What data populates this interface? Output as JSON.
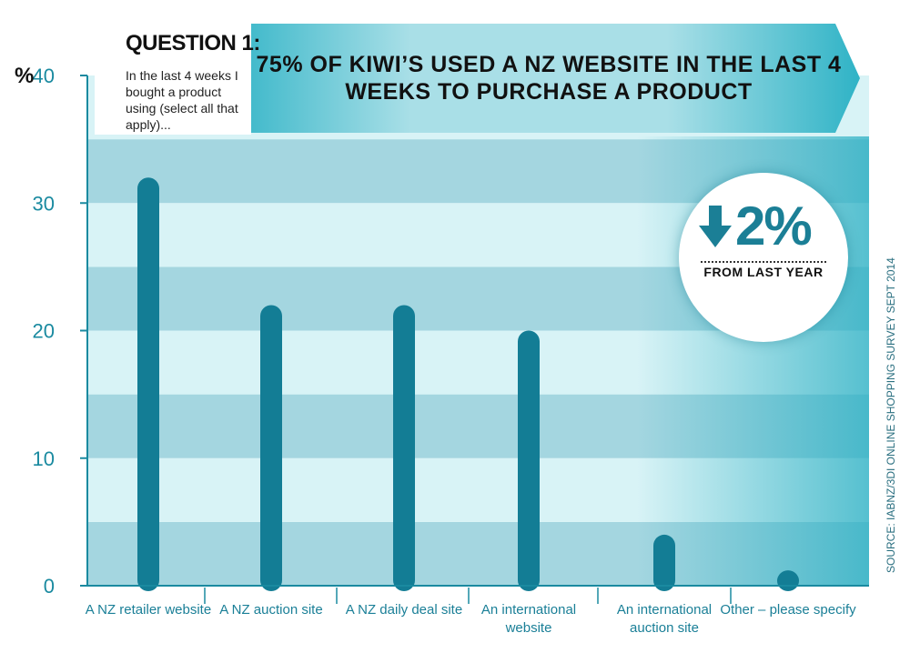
{
  "question": {
    "title": "QUESTION 1:",
    "text": "In the last 4 weeks I bought a product using (select all that apply)..."
  },
  "headline": "75% OF KIWI’S USED A NZ WEBSITE IN THE LAST 4 WEEKS TO PURCHASE A PRODUCT",
  "badge": {
    "value": "2%",
    "caption": "FROM LAST YEAR",
    "direction_icon": "down-arrow-icon"
  },
  "source": "SOURCE: IABNZ/3DI ONLINE SHOPPING SURVEY SEPT 2014",
  "colors": {
    "bar": "#137d95",
    "band_dark": "#a4d6e0",
    "band_light": "#d8f3f6",
    "accent_teal": "#2aafc3",
    "axis": "#1a8aa0"
  },
  "chart_data": {
    "type": "bar",
    "ylabel": "%",
    "ylim": [
      0,
      40
    ],
    "yticks": [
      "0",
      "10",
      "20",
      "30",
      "40"
    ],
    "categories": [
      [
        "A NZ retailer website"
      ],
      [
        "A NZ auction site"
      ],
      [
        "A NZ daily deal site"
      ],
      [
        "An international",
        "website"
      ],
      [
        "An international",
        "auction site"
      ],
      [
        "Other – please specify"
      ]
    ],
    "values": [
      32,
      22,
      22,
      20,
      4,
      1.2
    ],
    "grid": "alternating horizontal bands",
    "legend": "none"
  }
}
